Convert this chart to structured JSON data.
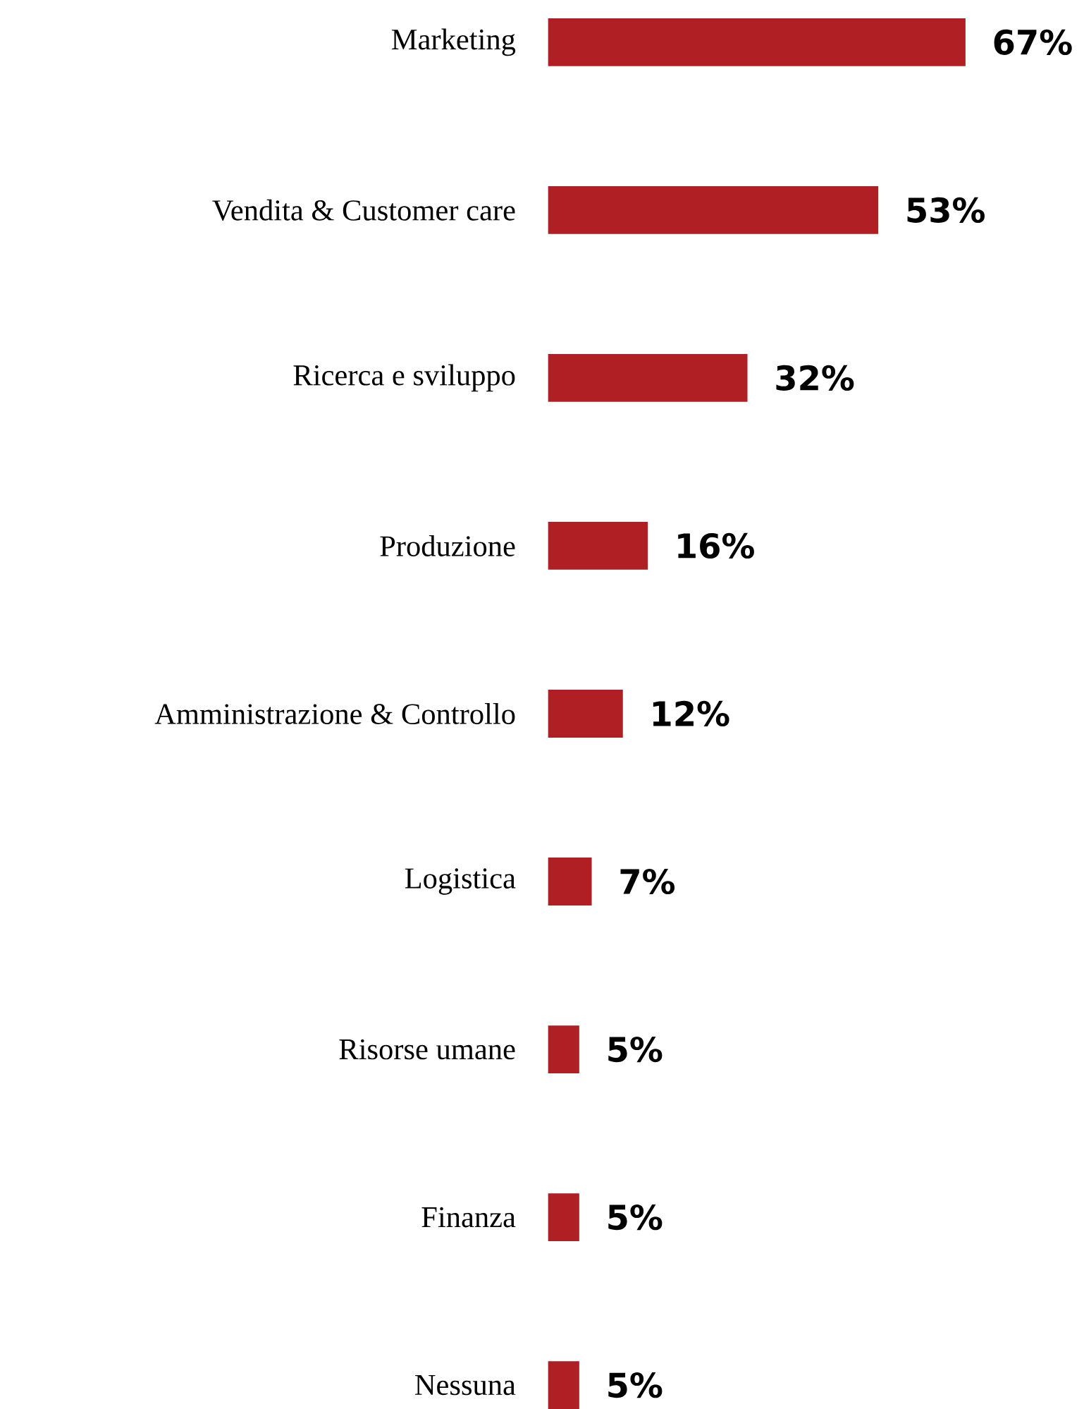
{
  "chart_data": {
    "type": "bar",
    "orientation": "horizontal",
    "categories": [
      "Marketing",
      "Vendita & Customer care",
      "Ricerca e sviluppo",
      "Produzione",
      "Amministrazione & Controllo",
      "Logistica",
      "Risorse umane",
      "Finanza",
      "Nessuna"
    ],
    "values": [
      67,
      53,
      32,
      16,
      12,
      7,
      5,
      5,
      5
    ],
    "value_labels": [
      "67%",
      "53%",
      "32%",
      "16%",
      "12%",
      "7%",
      "5%",
      "5%",
      "5%"
    ],
    "color": "#b01f24"
  }
}
